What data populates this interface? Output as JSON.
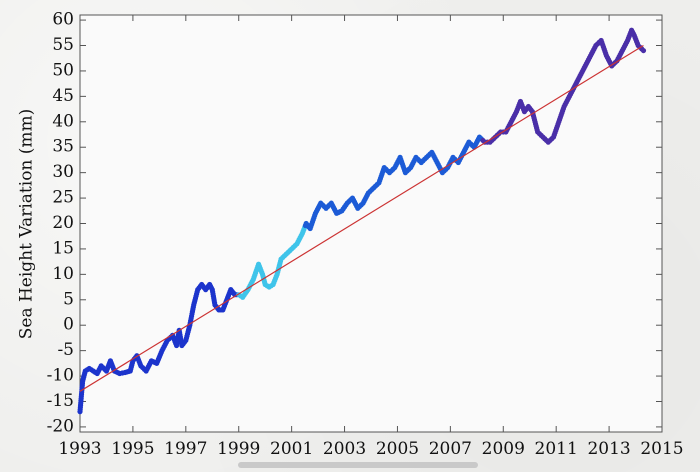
{
  "chart_data": {
    "type": "scatter",
    "title": "",
    "ylabel": "Sea Height Variation (mm)",
    "xlabel": "",
    "xlim": [
      1993,
      2015
    ],
    "ylim": [
      -21,
      61
    ],
    "x_ticks": [
      "1993",
      "1995",
      "1997",
      "1999",
      "2001",
      "2003",
      "2005",
      "2007",
      "2009",
      "2011",
      "2013",
      "2015"
    ],
    "y_ticks": [
      "60",
      "55",
      "50",
      "45",
      "40",
      "35",
      "30",
      "25",
      "20",
      "15",
      "10",
      "5",
      "0",
      "-5",
      "-10",
      "-15",
      "-20"
    ],
    "grid": false,
    "legend": "none",
    "series": [
      {
        "kind": "measurements",
        "color_by_segment": [
          {
            "x_from": 1993.0,
            "x_to": 1999.0,
            "color": "#1c34cc"
          },
          {
            "x_from": 1999.0,
            "x_to": 2001.5,
            "color": "#3fc4ea"
          },
          {
            "x_from": 2001.5,
            "x_to": 2008.2,
            "color": "#1c5bd6"
          },
          {
            "x_from": 2008.2,
            "x_to": 2015.0,
            "color": "#4a2fa8"
          }
        ],
        "points": [
          [
            1993.0,
            -17
          ],
          [
            1993.05,
            -14
          ],
          [
            1993.1,
            -11
          ],
          [
            1993.2,
            -9
          ],
          [
            1993.35,
            -8.5
          ],
          [
            1993.5,
            -9
          ],
          [
            1993.65,
            -9.5
          ],
          [
            1993.8,
            -8
          ],
          [
            1994.0,
            -9
          ],
          [
            1994.15,
            -7
          ],
          [
            1994.3,
            -9
          ],
          [
            1994.5,
            -9.5
          ],
          [
            1994.7,
            -9.3
          ],
          [
            1994.9,
            -9
          ],
          [
            1995.0,
            -7
          ],
          [
            1995.15,
            -6
          ],
          [
            1995.3,
            -8
          ],
          [
            1995.5,
            -9
          ],
          [
            1995.7,
            -7
          ],
          [
            1995.9,
            -7.5
          ],
          [
            1996.1,
            -5
          ],
          [
            1996.3,
            -3
          ],
          [
            1996.5,
            -2
          ],
          [
            1996.65,
            -4
          ],
          [
            1996.75,
            -1
          ],
          [
            1996.85,
            -4
          ],
          [
            1997.0,
            -3
          ],
          [
            1997.15,
            0
          ],
          [
            1997.3,
            4
          ],
          [
            1997.45,
            7
          ],
          [
            1997.6,
            8
          ],
          [
            1997.75,
            7
          ],
          [
            1997.9,
            8
          ],
          [
            1998.0,
            7
          ],
          [
            1998.1,
            4
          ],
          [
            1998.25,
            3
          ],
          [
            1998.4,
            3
          ],
          [
            1998.55,
            5
          ],
          [
            1998.7,
            7
          ],
          [
            1998.85,
            6
          ],
          [
            1999.0,
            6
          ],
          [
            1999.15,
            5.5
          ],
          [
            1999.35,
            7
          ],
          [
            1999.55,
            9
          ],
          [
            1999.75,
            12
          ],
          [
            1999.9,
            10
          ],
          [
            2000.0,
            8
          ],
          [
            2000.15,
            7.5
          ],
          [
            2000.3,
            8
          ],
          [
            2000.45,
            10
          ],
          [
            2000.6,
            13
          ],
          [
            2000.8,
            14
          ],
          [
            2001.0,
            15
          ],
          [
            2001.2,
            16
          ],
          [
            2001.4,
            18
          ],
          [
            2001.55,
            20
          ],
          [
            2001.7,
            19
          ],
          [
            2001.9,
            22
          ],
          [
            2002.1,
            24
          ],
          [
            2002.3,
            23
          ],
          [
            2002.5,
            24
          ],
          [
            2002.7,
            22
          ],
          [
            2002.9,
            22.5
          ],
          [
            2003.1,
            24
          ],
          [
            2003.3,
            25
          ],
          [
            2003.5,
            23
          ],
          [
            2003.7,
            24
          ],
          [
            2003.9,
            26
          ],
          [
            2004.1,
            27
          ],
          [
            2004.3,
            28
          ],
          [
            2004.5,
            31
          ],
          [
            2004.7,
            30
          ],
          [
            2004.9,
            31
          ],
          [
            2005.1,
            33
          ],
          [
            2005.3,
            30
          ],
          [
            2005.5,
            31
          ],
          [
            2005.7,
            33
          ],
          [
            2005.9,
            32
          ],
          [
            2006.1,
            33
          ],
          [
            2006.3,
            34
          ],
          [
            2006.5,
            32
          ],
          [
            2006.7,
            30
          ],
          [
            2006.9,
            31
          ],
          [
            2007.1,
            33
          ],
          [
            2007.3,
            32
          ],
          [
            2007.5,
            34
          ],
          [
            2007.7,
            36
          ],
          [
            2007.9,
            35
          ],
          [
            2008.1,
            37
          ],
          [
            2008.3,
            36
          ],
          [
            2008.5,
            36
          ],
          [
            2008.7,
            37
          ],
          [
            2008.9,
            38
          ],
          [
            2009.1,
            38
          ],
          [
            2009.3,
            40
          ],
          [
            2009.5,
            42
          ],
          [
            2009.65,
            44
          ],
          [
            2009.8,
            42
          ],
          [
            2009.95,
            43
          ],
          [
            2010.1,
            42
          ],
          [
            2010.3,
            38
          ],
          [
            2010.5,
            37
          ],
          [
            2010.7,
            36
          ],
          [
            2010.9,
            37
          ],
          [
            2011.1,
            40
          ],
          [
            2011.3,
            43
          ],
          [
            2011.5,
            45
          ],
          [
            2011.7,
            47
          ],
          [
            2011.9,
            49
          ],
          [
            2012.1,
            51
          ],
          [
            2012.3,
            53
          ],
          [
            2012.5,
            55
          ],
          [
            2012.7,
            56
          ],
          [
            2012.9,
            53
          ],
          [
            2013.1,
            51
          ],
          [
            2013.3,
            52
          ],
          [
            2013.5,
            54
          ],
          [
            2013.7,
            56
          ],
          [
            2013.85,
            58
          ],
          [
            2013.95,
            57
          ],
          [
            2014.1,
            55
          ],
          [
            2014.3,
            54
          ]
        ]
      },
      {
        "kind": "trend",
        "color": "#cc3333",
        "points": [
          [
            1993.0,
            -13
          ],
          [
            2014.3,
            55
          ]
        ]
      }
    ]
  }
}
